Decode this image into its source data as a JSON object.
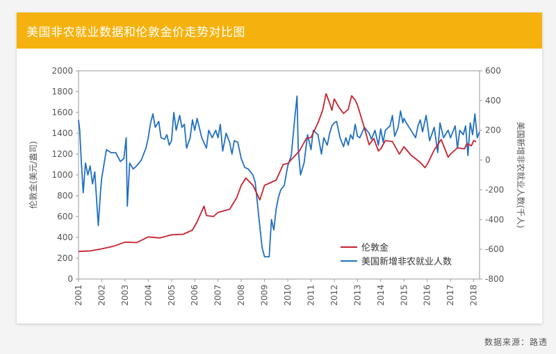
{
  "title": "美国非农就业数据和伦敦金价走势对比图",
  "source": "数据来源：路透",
  "colors": {
    "accent": "#f5b20e",
    "gold": "#c8202e",
    "payrolls": "#1f6fc0",
    "axis": "#555555"
  },
  "chart_data": {
    "type": "line",
    "title": "美国非农就业数据和伦敦金价走势对比图",
    "xlabel": "",
    "x_ticks": [
      "2001",
      "2002",
      "2003",
      "2004",
      "2005",
      "2006",
      "2007",
      "2008",
      "2009",
      "2010",
      "2011",
      "2012",
      "2013",
      "2014",
      "2015",
      "2016",
      "2017",
      "2018"
    ],
    "xlim": [
      2001,
      2018.25
    ],
    "left_axis": {
      "label": "伦敦金(美元/盎司)",
      "ylim": [
        0,
        2000
      ],
      "ticks": [
        "0",
        "200",
        "400",
        "600",
        "800",
        "1000",
        "1200",
        "1400",
        "1600",
        "1800",
        "2000"
      ]
    },
    "right_axis": {
      "label": "美国新增非农就业人数(千人)",
      "ylim": [
        -800,
        600
      ],
      "ticks": [
        "-800",
        "-600",
        "-400",
        "-200",
        "0",
        "200",
        "400",
        "600"
      ]
    },
    "legend": {
      "position": "bottom-right",
      "entries": [
        "伦敦金",
        "美国新增非农就业人数"
      ]
    },
    "series": [
      {
        "name": "伦敦金",
        "axis": "left",
        "points": [
          [
            2001,
            265
          ],
          [
            2001.5,
            270
          ],
          [
            2002,
            290
          ],
          [
            2002.5,
            315
          ],
          [
            2003,
            355
          ],
          [
            2003.5,
            350
          ],
          [
            2004,
            405
          ],
          [
            2004.5,
            395
          ],
          [
            2005,
            425
          ],
          [
            2005.5,
            430
          ],
          [
            2005.9,
            470
          ],
          [
            2006.1,
            550
          ],
          [
            2006.4,
            700
          ],
          [
            2006.5,
            610
          ],
          [
            2006.8,
            600
          ],
          [
            2007,
            640
          ],
          [
            2007.5,
            670
          ],
          [
            2007.8,
            780
          ],
          [
            2008,
            900
          ],
          [
            2008.2,
            970
          ],
          [
            2008.5,
            900
          ],
          [
            2008.8,
            760
          ],
          [
            2009,
            900
          ],
          [
            2009.2,
            920
          ],
          [
            2009.5,
            950
          ],
          [
            2009.8,
            1100
          ],
          [
            2010,
            1110
          ],
          [
            2010.5,
            1230
          ],
          [
            2010.8,
            1350
          ],
          [
            2011,
            1360
          ],
          [
            2011.3,
            1500
          ],
          [
            2011.5,
            1620
          ],
          [
            2011.65,
            1780
          ],
          [
            2011.8,
            1690
          ],
          [
            2011.9,
            1620
          ],
          [
            2012,
            1730
          ],
          [
            2012.2,
            1650
          ],
          [
            2012.4,
            1590
          ],
          [
            2012.6,
            1630
          ],
          [
            2012.75,
            1760
          ],
          [
            2012.9,
            1720
          ],
          [
            2013,
            1670
          ],
          [
            2013.3,
            1450
          ],
          [
            2013.5,
            1290
          ],
          [
            2013.7,
            1350
          ],
          [
            2013.9,
            1230
          ],
          [
            2014,
            1250
          ],
          [
            2014.2,
            1330
          ],
          [
            2014.5,
            1320
          ],
          [
            2014.8,
            1200
          ],
          [
            2015,
            1270
          ],
          [
            2015.3,
            1190
          ],
          [
            2015.7,
            1120
          ],
          [
            2015.9,
            1070
          ],
          [
            2016,
            1100
          ],
          [
            2016.3,
            1240
          ],
          [
            2016.6,
            1340
          ],
          [
            2016.9,
            1170
          ],
          [
            2017,
            1200
          ],
          [
            2017.3,
            1260
          ],
          [
            2017.6,
            1250
          ],
          [
            2017.7,
            1300
          ],
          [
            2017.9,
            1280
          ],
          [
            2018,
            1330
          ],
          [
            2018.1,
            1320
          ]
        ]
      },
      {
        "name": "美国新增非农就业人数",
        "axis": "right",
        "points": [
          [
            2001,
            270
          ],
          [
            2001.05,
            200
          ],
          [
            2001.12,
            -10
          ],
          [
            2001.2,
            -220
          ],
          [
            2001.3,
            -20
          ],
          [
            2001.4,
            -100
          ],
          [
            2001.5,
            -40
          ],
          [
            2001.6,
            -160
          ],
          [
            2001.7,
            -80
          ],
          [
            2001.85,
            -440
          ],
          [
            2001.95,
            -200
          ],
          [
            2002,
            -120
          ],
          [
            2002.2,
            70
          ],
          [
            2002.4,
            50
          ],
          [
            2002.6,
            50
          ],
          [
            2002.8,
            -10
          ],
          [
            2002.95,
            10
          ],
          [
            2003.05,
            150
          ],
          [
            2003.1,
            -310
          ],
          [
            2003.2,
            -20
          ],
          [
            2003.35,
            -60
          ],
          [
            2003.5,
            -40
          ],
          [
            2003.7,
            0
          ],
          [
            2003.9,
            80
          ],
          [
            2004,
            150
          ],
          [
            2004.1,
            250
          ],
          [
            2004.2,
            310
          ],
          [
            2004.3,
            220
          ],
          [
            2004.45,
            260
          ],
          [
            2004.55,
            150
          ],
          [
            2004.7,
            140
          ],
          [
            2004.8,
            170
          ],
          [
            2004.9,
            100
          ],
          [
            2005,
            130
          ],
          [
            2005.1,
            320
          ],
          [
            2005.2,
            200
          ],
          [
            2005.35,
            300
          ],
          [
            2005.45,
            220
          ],
          [
            2005.55,
            240
          ],
          [
            2005.65,
            80
          ],
          [
            2005.8,
            150
          ],
          [
            2005.9,
            270
          ],
          [
            2006,
            200
          ],
          [
            2006.1,
            280
          ],
          [
            2006.3,
            150
          ],
          [
            2006.5,
            80
          ],
          [
            2006.6,
            200
          ],
          [
            2006.75,
            150
          ],
          [
            2006.9,
            200
          ],
          [
            2007,
            150
          ],
          [
            2007.1,
            240
          ],
          [
            2007.2,
            60
          ],
          [
            2007.35,
            180
          ],
          [
            2007.5,
            120
          ],
          [
            2007.6,
            40
          ],
          [
            2007.7,
            130
          ],
          [
            2007.85,
            120
          ],
          [
            2008,
            10
          ],
          [
            2008.15,
            -50
          ],
          [
            2008.3,
            -60
          ],
          [
            2008.5,
            -100
          ],
          [
            2008.6,
            -150
          ],
          [
            2008.7,
            -300
          ],
          [
            2008.8,
            -450
          ],
          [
            2008.9,
            -590
          ],
          [
            2009,
            -650
          ],
          [
            2009.1,
            -650
          ],
          [
            2009.2,
            -650
          ],
          [
            2009.3,
            -400
          ],
          [
            2009.4,
            -470
          ],
          [
            2009.5,
            -330
          ],
          [
            2009.6,
            -250
          ],
          [
            2009.7,
            -200
          ],
          [
            2009.85,
            -170
          ],
          [
            2010,
            -40
          ],
          [
            2010.15,
            30
          ],
          [
            2010.3,
            280
          ],
          [
            2010.4,
            430
          ],
          [
            2010.45,
            80
          ],
          [
            2010.55,
            -100
          ],
          [
            2010.7,
            -20
          ],
          [
            2010.85,
            170
          ],
          [
            2011,
            70
          ],
          [
            2011.1,
            200
          ],
          [
            2011.3,
            170
          ],
          [
            2011.45,
            40
          ],
          [
            2011.55,
            150
          ],
          [
            2011.7,
            100
          ],
          [
            2011.8,
            180
          ],
          [
            2011.9,
            230
          ],
          [
            2012,
            250
          ],
          [
            2012.1,
            260
          ],
          [
            2012.25,
            150
          ],
          [
            2012.4,
            90
          ],
          [
            2012.5,
            150
          ],
          [
            2012.6,
            100
          ],
          [
            2012.7,
            170
          ],
          [
            2012.8,
            140
          ],
          [
            2012.9,
            240
          ],
          [
            2013,
            160
          ],
          [
            2013.1,
            150
          ],
          [
            2013.3,
            220
          ],
          [
            2013.5,
            180
          ],
          [
            2013.6,
            140
          ],
          [
            2013.75,
            200
          ],
          [
            2013.9,
            100
          ],
          [
            2014,
            210
          ],
          [
            2014.1,
            120
          ],
          [
            2014.2,
            200
          ],
          [
            2014.4,
            230
          ],
          [
            2014.5,
            300
          ],
          [
            2014.6,
            160
          ],
          [
            2014.75,
            220
          ],
          [
            2014.85,
            330
          ],
          [
            2014.95,
            250
          ],
          [
            2015,
            280
          ],
          [
            2015.1,
            250
          ],
          [
            2015.3,
            200
          ],
          [
            2015.5,
            150
          ],
          [
            2015.6,
            230
          ],
          [
            2015.7,
            270
          ],
          [
            2015.8,
            190
          ],
          [
            2015.95,
            300
          ],
          [
            2016,
            250
          ],
          [
            2016.1,
            130
          ],
          [
            2016.3,
            220
          ],
          [
            2016.45,
            50
          ],
          [
            2016.55,
            250
          ],
          [
            2016.7,
            150
          ],
          [
            2016.9,
            200
          ],
          [
            2017,
            150
          ],
          [
            2017.2,
            230
          ],
          [
            2017.3,
            80
          ],
          [
            2017.4,
            200
          ],
          [
            2017.55,
            170
          ],
          [
            2017.65,
            230
          ],
          [
            2017.75,
            30
          ],
          [
            2017.85,
            250
          ],
          [
            2017.95,
            170
          ],
          [
            2018.05,
            310
          ],
          [
            2018.15,
            150
          ],
          [
            2018.25,
            190
          ]
        ]
      }
    ]
  }
}
